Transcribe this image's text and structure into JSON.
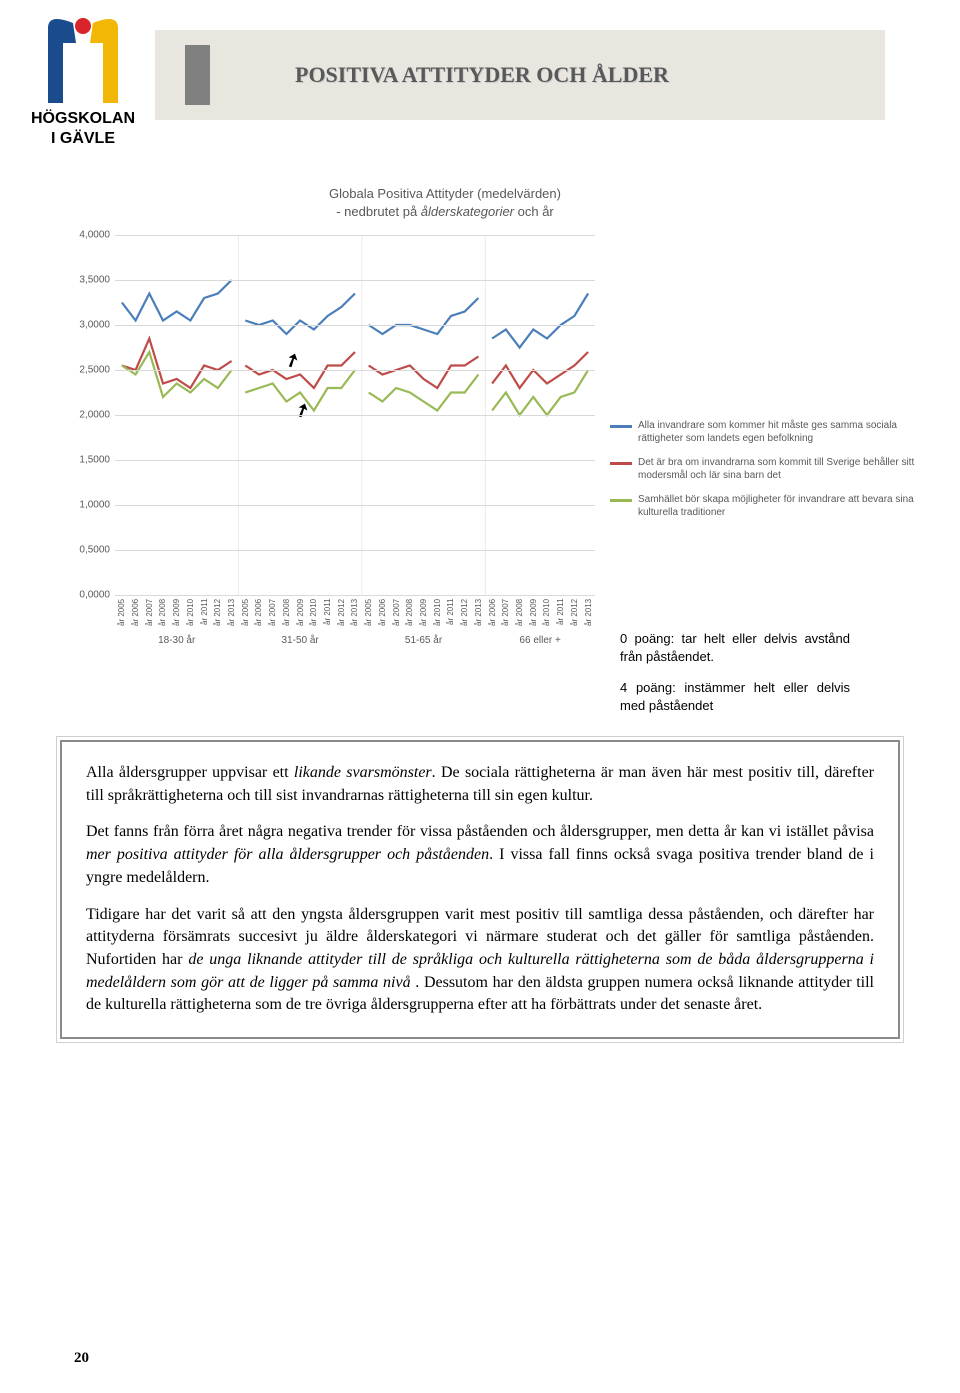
{
  "header": {
    "title": "POSITIVA ATTITYDER OCH ÅLDER"
  },
  "logo": {
    "line1": "HÖGSKOLAN",
    "line2": "I GÄVLE"
  },
  "chart": {
    "type": "line",
    "title_line1": "Globala Positiva Attityder (medelvärden)",
    "title_line2_prefix": "- nedbrutet på ",
    "title_line2_em": "ålderskategorier",
    "title_line2_suffix": " och år",
    "ylim": [
      0,
      4
    ],
    "ytick_step": 0.5,
    "ytick_labels": [
      "0,0000",
      "0,5000",
      "1,0000",
      "1,5000",
      "2,0000",
      "2,5000",
      "3,0000",
      "3,5000",
      "4,0000"
    ],
    "grid_color": "#d9d9d9",
    "background_color": "#ffffff",
    "years": [
      "år 2005",
      "år 2006",
      "år 2007",
      "år 2008",
      "år 2009",
      "år 2010",
      "år 2011",
      "år 2012",
      "år 2013"
    ],
    "groups": [
      {
        "label": "18-30 år"
      },
      {
        "label": "31-50 år"
      },
      {
        "label": "51-65 år"
      },
      {
        "label": "66 eller +",
        "years_start": 1
      }
    ],
    "series": [
      {
        "label": "Alla invandrare som kommer hit måste ges samma sociala rättigheter som landets egen befolkning",
        "color": "#4a7ebb",
        "data": {
          "18-30 år": [
            3.25,
            3.05,
            3.35,
            3.05,
            3.15,
            3.05,
            3.3,
            3.35,
            3.5
          ],
          "31-50 år": [
            3.05,
            3.0,
            3.05,
            2.9,
            3.05,
            2.95,
            3.1,
            3.2,
            3.35
          ],
          "51-65 år": [
            3.0,
            2.9,
            3.0,
            3.0,
            2.95,
            2.9,
            3.1,
            3.15,
            3.3
          ],
          "66 eller +": [
            2.85,
            2.95,
            2.75,
            2.95,
            2.85,
            3.0,
            3.1,
            3.35
          ]
        }
      },
      {
        "label": "Det är bra om invandrarna som kommit till Sverige behåller sitt modersmål och lär sina barn det",
        "color": "#be4b48",
        "data": {
          "18-30 år": [
            2.55,
            2.5,
            2.85,
            2.35,
            2.4,
            2.3,
            2.55,
            2.5,
            2.6
          ],
          "31-50 år": [
            2.55,
            2.45,
            2.5,
            2.4,
            2.45,
            2.3,
            2.55,
            2.55,
            2.7
          ],
          "51-65 år": [
            2.55,
            2.45,
            2.5,
            2.55,
            2.4,
            2.3,
            2.55,
            2.55,
            2.65
          ],
          "66 eller +": [
            2.35,
            2.55,
            2.3,
            2.5,
            2.35,
            2.45,
            2.55,
            2.7
          ]
        }
      },
      {
        "label": "Samhället bör skapa möjligheter för invandrare att bevara sina kulturella traditioner",
        "color": "#98b954",
        "data": {
          "18-30 år": [
            2.55,
            2.45,
            2.7,
            2.2,
            2.35,
            2.25,
            2.4,
            2.3,
            2.5
          ],
          "31-50 år": [
            2.25,
            2.3,
            2.35,
            2.15,
            2.25,
            2.05,
            2.3,
            2.3,
            2.5
          ],
          "51-65 år": [
            2.25,
            2.15,
            2.3,
            2.25,
            2.15,
            2.05,
            2.25,
            2.25,
            2.45
          ],
          "66 eller +": [
            2.05,
            2.25,
            2.0,
            2.2,
            2.0,
            2.2,
            2.25,
            2.5
          ]
        }
      }
    ],
    "line_width": 2.2,
    "title_fontsize": 13,
    "label_fontsize": 10,
    "tick_fontsize": 10
  },
  "note": {
    "p1": "0 poäng: tar helt eller delvis avstånd från påståendet.",
    "p2": "4 poäng: instämmer helt eller delvis med påståendet"
  },
  "body": {
    "p1_a": "Alla åldersgrupper uppvisar ett ",
    "p1_em": "likande svarsmönster",
    "p1_b": ". De sociala rättigheterna är man även här mest positiv till, därefter till språkrättigheterna och till sist invandrarnas rättigheterna till sin egen kultur.",
    "p2_a": "Det fanns från förra året några negativa trender för vissa påståenden och åldersgrupper, men detta år kan vi istället påvisa ",
    "p2_em": "mer positiva attityder för alla åldersgrupper och påståenden",
    "p2_b": ". I vissa fall finns också svaga positiva trender bland de i yngre medelåldern.",
    "p3_a": "Tidigare har det varit så att den yngsta åldersgruppen varit mest positiv till samtliga dessa påståenden, och därefter har attityderna försämrats succesivt ju äldre ålderskategori vi närmare studerat och det gäller för samtliga påståenden. Nufortiden har ",
    "p3_em": "de unga liknande attityder till de språkliga och kulturella rättigheterna som de båda åldersgrupperna i medelåldern som gör att de ligger på samma nivå",
    "p3_b": " . Dessutom har den äldsta gruppen numera också liknande attityder till de kulturella rättigheterna som de tre övriga åldersgrupperna efter att ha förbättrats under det senaste året."
  },
  "page_number": "20"
}
